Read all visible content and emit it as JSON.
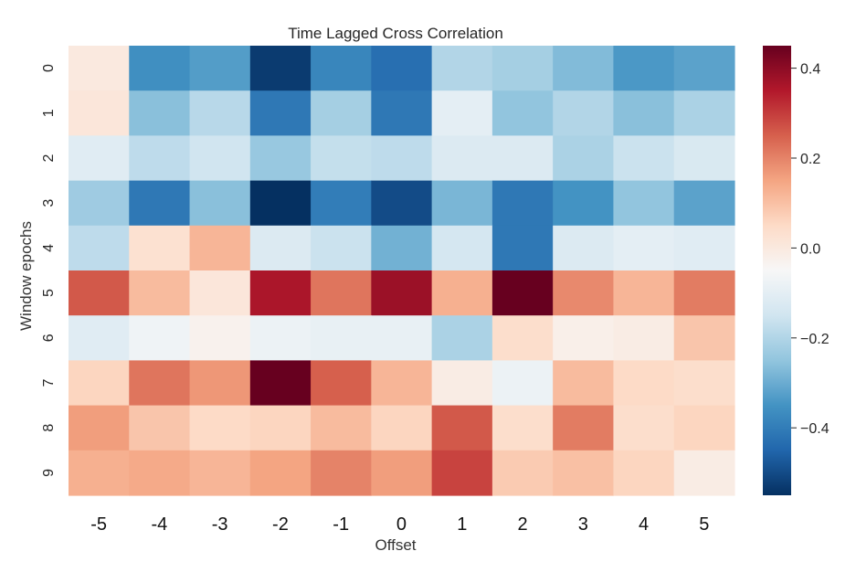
{
  "chart_data": {
    "type": "heatmap",
    "title": "Time Lagged Cross Correlation",
    "xlabel": "Offset",
    "ylabel": "Window epochs",
    "x_categories": [
      "-5",
      "-4",
      "-3",
      "-2",
      "-1",
      "0",
      "1",
      "2",
      "3",
      "4",
      "5"
    ],
    "y_categories": [
      "0",
      "1",
      "2",
      "3",
      "4",
      "5",
      "6",
      "7",
      "8",
      "9"
    ],
    "values": [
      [
        0.0,
        -0.36,
        -0.33,
        -0.53,
        -0.38,
        -0.43,
        -0.2,
        -0.22,
        -0.27,
        -0.34,
        -0.32
      ],
      [
        0.01,
        -0.26,
        -0.19,
        -0.41,
        -0.22,
        -0.41,
        -0.1,
        -0.25,
        -0.2,
        -0.26,
        -0.21
      ],
      [
        -0.11,
        -0.18,
        -0.15,
        -0.24,
        -0.17,
        -0.18,
        -0.12,
        -0.12,
        -0.21,
        -0.16,
        -0.13
      ],
      [
        -0.23,
        -0.41,
        -0.26,
        -0.55,
        -0.4,
        -0.5,
        -0.28,
        -0.41,
        -0.35,
        -0.25,
        -0.32
      ],
      [
        -0.18,
        0.03,
        0.12,
        -0.12,
        -0.16,
        -0.29,
        -0.14,
        -0.41,
        -0.12,
        -0.1,
        -0.11
      ],
      [
        0.26,
        0.11,
        0.01,
        0.36,
        0.22,
        0.38,
        0.13,
        0.45,
        0.19,
        0.12,
        0.21
      ],
      [
        -0.11,
        -0.07,
        -0.03,
        -0.08,
        -0.09,
        -0.09,
        -0.21,
        0.04,
        -0.02,
        -0.01,
        0.09
      ],
      [
        0.06,
        0.22,
        0.17,
        0.45,
        0.25,
        0.12,
        -0.01,
        -0.08,
        0.11,
        0.05,
        0.04
      ],
      [
        0.16,
        0.09,
        0.05,
        0.06,
        0.11,
        0.06,
        0.26,
        0.04,
        0.21,
        0.04,
        0.06
      ],
      [
        0.13,
        0.14,
        0.12,
        0.15,
        0.2,
        0.16,
        0.29,
        0.08,
        0.1,
        0.06,
        -0.01
      ]
    ],
    "colormap": "RdBu_r",
    "vmin": -0.55,
    "vmax": 0.45,
    "colorbar_ticks": [
      0.4,
      0.2,
      0.0,
      -0.2,
      -0.4
    ],
    "colorbar_tick_labels": [
      "0.4",
      "0.2",
      "0.0",
      "−0.2",
      "−0.4"
    ],
    "grid": false,
    "legend": "right colorbar"
  }
}
